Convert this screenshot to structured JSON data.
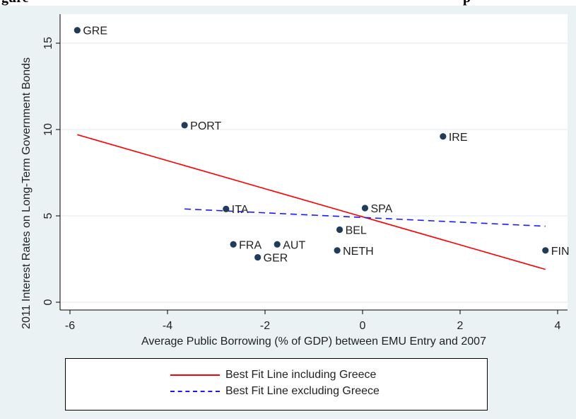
{
  "top_caption": {
    "left": "gure",
    "right": "p"
  },
  "colors": {
    "background": "#eaf2f3",
    "plot_area": "#ffffff",
    "point": "#1f3d5a",
    "fit_including": "#ff0000",
    "fit_excluding": "#1a1aff",
    "text": "#222222"
  },
  "chart_data": {
    "type": "scatter",
    "xlabel": "Average Public Borrowing (% of GDP) between EMU Entry and 2007",
    "ylabel": "2011 Interest Rates on Long-Term Government Bonds",
    "xlim": [
      -6.1,
      3.95
    ],
    "ylim": [
      -0.3,
      16.4
    ],
    "xticks": [
      -6,
      -4,
      -2,
      0,
      2,
      4
    ],
    "yticks": [
      0,
      5,
      10,
      15
    ],
    "grid": "horizontal",
    "points": [
      {
        "label": "GRE",
        "x": -5.85,
        "y": 15.75
      },
      {
        "label": "PORT",
        "x": -3.65,
        "y": 10.25
      },
      {
        "label": "IRE",
        "x": 1.65,
        "y": 9.6
      },
      {
        "label": "ITA",
        "x": -2.8,
        "y": 5.4
      },
      {
        "label": "SPA",
        "x": 0.05,
        "y": 5.45
      },
      {
        "label": "BEL",
        "x": -0.47,
        "y": 4.2
      },
      {
        "label": "FRA",
        "x": -2.65,
        "y": 3.35
      },
      {
        "label": "AUT",
        "x": -1.75,
        "y": 3.35
      },
      {
        "label": "GER",
        "x": -2.15,
        "y": 2.6
      },
      {
        "label": "NETH",
        "x": -0.52,
        "y": 3.0
      },
      {
        "label": "FIN",
        "x": 3.75,
        "y": 3.0
      }
    ],
    "fit_lines": [
      {
        "name": "Best Fit Line including Greece",
        "style": "solid",
        "x": [
          -5.85,
          3.75
        ],
        "y": [
          9.7,
          1.9
        ]
      },
      {
        "name": "Best Fit Line excluding Greece",
        "style": "dashed",
        "x": [
          -3.65,
          3.75
        ],
        "y": [
          5.4,
          4.4
        ]
      }
    ],
    "legend_position": "bottom"
  }
}
